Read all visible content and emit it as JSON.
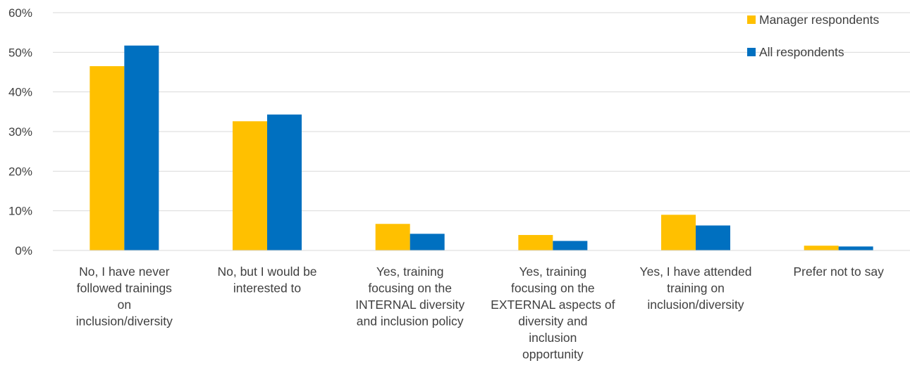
{
  "chart_data": {
    "type": "bar",
    "title": "",
    "xlabel": "",
    "ylabel": "",
    "ylim": [
      0,
      60
    ],
    "yticks": [
      "0%",
      "10%",
      "20%",
      "30%",
      "40%",
      "50%",
      "60%"
    ],
    "ytick_values": [
      0,
      10,
      20,
      30,
      40,
      50,
      60
    ],
    "grid": true,
    "legend_position": "top-right",
    "categories": [
      [
        "No, I have never",
        "followed trainings",
        "on",
        "inclusion/diversity"
      ],
      [
        "No, but I would be",
        "interested to"
      ],
      [
        "Yes, training",
        "focusing on the",
        "INTERNAL diversity",
        "and inclusion policy"
      ],
      [
        "Yes, training",
        "focusing on the",
        "EXTERNAL aspects of",
        "diversity and",
        "inclusion",
        "opportunity"
      ],
      [
        "Yes, I have attended",
        "training on",
        "inclusion/diversity"
      ],
      [
        "Prefer not to say"
      ]
    ],
    "series": [
      {
        "name": "Manager respondents",
        "color": "#FFC000",
        "values": [
          46.5,
          32.6,
          6.7,
          3.9,
          9.0,
          1.2
        ]
      },
      {
        "name": "All respondents",
        "color": "#0070C0",
        "values": [
          51.7,
          34.3,
          4.2,
          2.4,
          6.3,
          1.0
        ]
      }
    ]
  }
}
